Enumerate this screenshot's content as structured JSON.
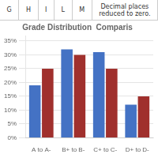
{
  "chart_data": {
    "type": "bar",
    "title": "Grade Distribution  Comparis",
    "categories": [
      "A to A-",
      "B+ to B-",
      "C+ to C-",
      "D+ to D-"
    ],
    "series": [
      {
        "color": "#4472C4",
        "values": [
          19,
          32,
          31,
          12
        ]
      },
      {
        "color": "#A0302D",
        "values": [
          25,
          30,
          25,
          15
        ]
      }
    ],
    "ylim": [
      0,
      37
    ],
    "yticks": [
      {
        "value": 0,
        "label": "0%"
      },
      {
        "value": 5,
        "label": "5%"
      },
      {
        "value": 10,
        "label": "10%"
      },
      {
        "value": 15,
        "label": "15%"
      },
      {
        "value": 20,
        "label": "20%"
      },
      {
        "value": 25,
        "label": "25%"
      },
      {
        "value": 30,
        "label": "30%"
      },
      {
        "value": 35,
        "label": "35%"
      }
    ],
    "grid": true,
    "annotations": [
      "G",
      "H",
      "I",
      "L",
      "M",
      "Decimal places\nreduced to zero."
    ]
  }
}
